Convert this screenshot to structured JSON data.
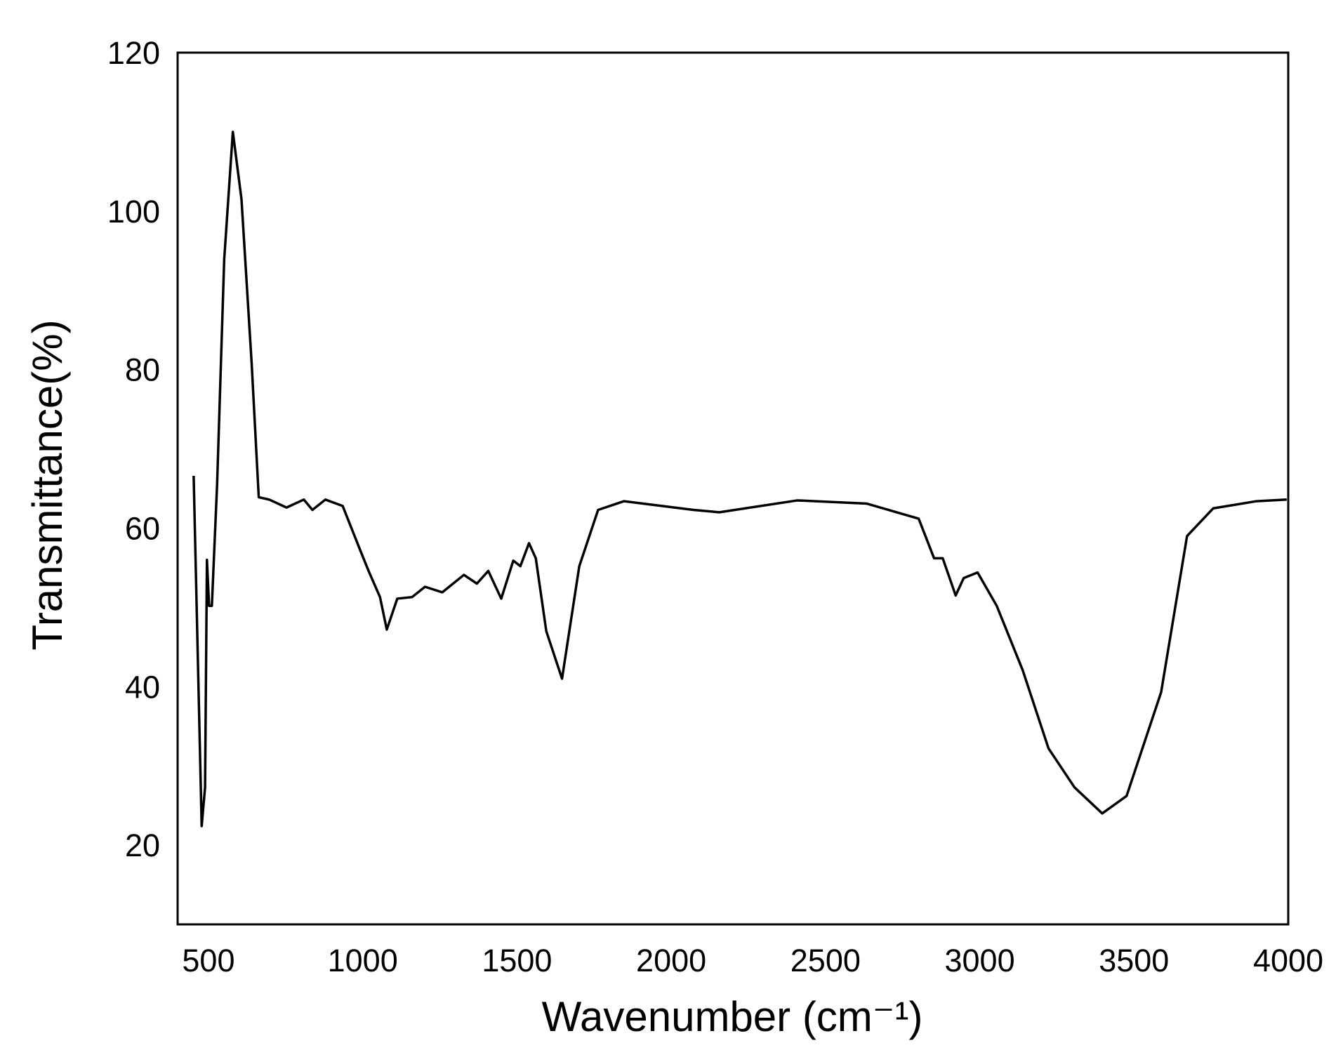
{
  "chart_data": {
    "type": "line",
    "x_label": "Wavenumber (cm⁻¹)",
    "y_label": "Transmittance(%)",
    "x": [
      452,
      478,
      489,
      495,
      502,
      511,
      528,
      551,
      579,
      607,
      640,
      663,
      697,
      753,
      809,
      837,
      879,
      935,
      991,
      1019,
      1056,
      1078,
      1112,
      1160,
      1202,
      1258,
      1328,
      1370,
      1407,
      1449,
      1488,
      1511,
      1539,
      1561,
      1595,
      1646,
      1702,
      1763,
      1847,
      2072,
      2156,
      2409,
      2633,
      2802,
      2852,
      2880,
      2922,
      2948,
      2993,
      3055,
      3139,
      3223,
      3307,
      3397,
      3476,
      3588,
      3672,
      3757,
      3897,
      3995
    ],
    "series": [
      {
        "color": "#000000",
        "values": [
          66.6,
          22.4,
          27.3,
          56.0,
          50.2,
          50.2,
          65.5,
          93.9,
          110.0,
          101.5,
          80.8,
          63.9,
          63.6,
          62.6,
          63.6,
          62.3,
          63.6,
          62.8,
          57.3,
          54.6,
          51.3,
          47.2,
          51.1,
          51.3,
          52.6,
          51.9,
          54.1,
          53.0,
          54.6,
          51.1,
          55.9,
          55.2,
          58.1,
          56.2,
          47.0,
          41.0,
          55.2,
          62.3,
          63.4,
          62.3,
          62.0,
          63.5,
          63.1,
          61.2,
          56.2,
          56.2,
          51.5,
          53.7,
          54.4,
          50.2,
          42.1,
          32.2,
          27.3,
          24.0,
          26.2,
          39.3,
          59.0,
          62.5,
          63.4,
          63.6
        ]
      }
    ],
    "xlim": [
      400,
      4000
    ],
    "xticks": [
      500,
      1000,
      1500,
      2000,
      2500,
      3000,
      3500,
      4000
    ],
    "ylim": [
      10,
      120
    ],
    "yticks": [
      20,
      40,
      60,
      80,
      100,
      120
    ],
    "grid": false
  }
}
